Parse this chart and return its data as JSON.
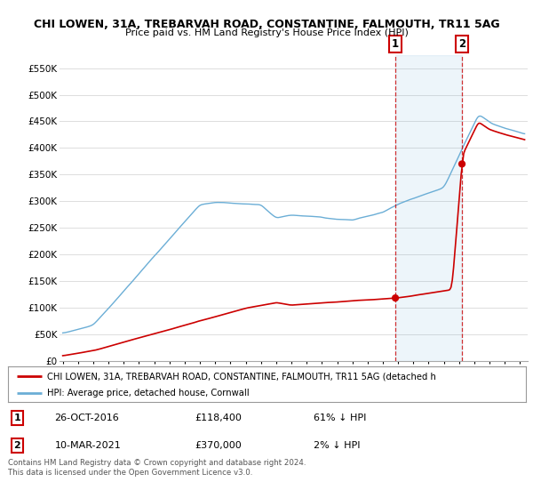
{
  "title": "CHI LOWEN, 31A, TREBARVAH ROAD, CONSTANTINE, FALMOUTH, TR11 5AG",
  "subtitle": "Price paid vs. HM Land Registry's House Price Index (HPI)",
  "legend_line1": "CHI LOWEN, 31A, TREBARVAH ROAD, CONSTANTINE, FALMOUTH, TR11 5AG (detached h",
  "legend_line2": "HPI: Average price, detached house, Cornwall",
  "annotation1_date": "26-OCT-2016",
  "annotation1_price": 118400,
  "annotation1_price_str": "£118,400",
  "annotation1_text": "61% ↓ HPI",
  "annotation2_date": "10-MAR-2021",
  "annotation2_price": 370000,
  "annotation2_price_str": "£370,000",
  "annotation2_text": "2% ↓ HPI",
  "footer": "Contains HM Land Registry data © Crown copyright and database right 2024.\nThis data is licensed under the Open Government Licence v3.0.",
  "hpi_color": "#6baed6",
  "price_color": "#cc0000",
  "ylim_min": 0,
  "ylim_max": 575000,
  "yticks": [
    0,
    50000,
    100000,
    150000,
    200000,
    250000,
    300000,
    350000,
    400000,
    450000,
    500000,
    550000
  ],
  "background_color": "#ffffff",
  "grid_color": "#dddddd",
  "transaction1_x": 2016.82,
  "transaction2_x": 2021.19,
  "xmin": 1994.8,
  "xmax": 2025.5
}
